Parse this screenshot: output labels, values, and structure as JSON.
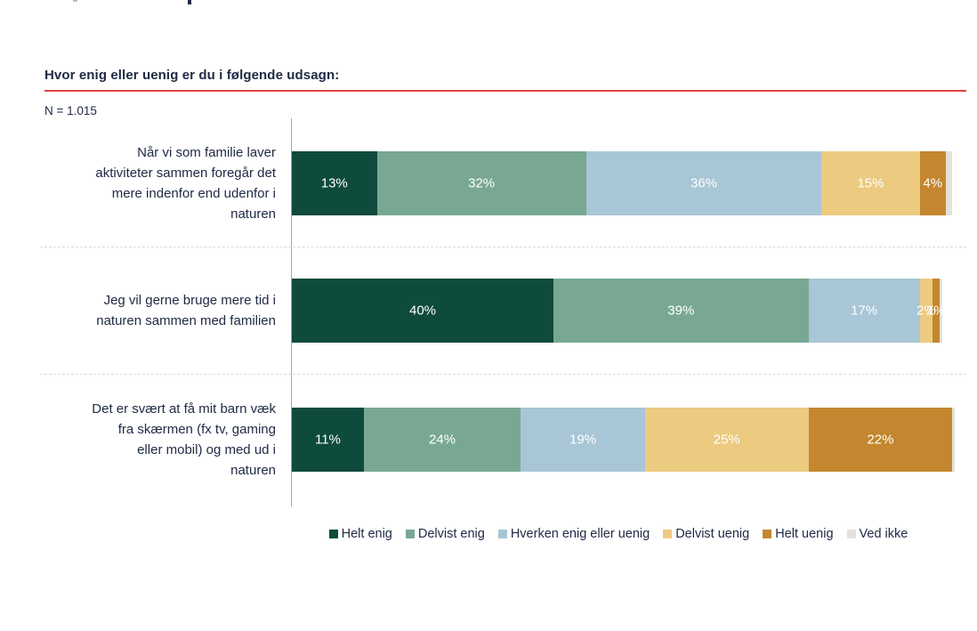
{
  "page": {
    "title": "Hvor enig eller uenig er du i følgende udsagn:",
    "sample_label": "N = 1.015"
  },
  "colors": {
    "accent_rule_red": "#E2453E",
    "text_navy": "#202B45",
    "axis_gray": "#A6A6A6",
    "separator_gray": "#D9D9D9",
    "background": "#FFFFFF",
    "bar_value_label": "#FFFFFF"
  },
  "chart_data": {
    "type": "bar",
    "orientation": "horizontal-stacked",
    "units": "percent",
    "xlim": [
      0,
      100
    ],
    "grid": false,
    "legend_position": "bottom-center",
    "title": "Hvor enig eller uenig er du i følgende udsagn:",
    "sample_size_note": "N = 1.015",
    "categories": [
      "Når vi som familie laver aktiviteter sammen foregår det mere indenfor end udenfor i naturen",
      "Jeg vil gerne bruge mere tid i naturen sammen med familien",
      "Det er svært at få mit barn væk fra skærmen (fx tv, gaming eller mobil) og med ud i naturen"
    ],
    "category_label_lines": [
      [
        "Når vi som familie laver",
        "aktiviteter sammen foregår det",
        "mere indenfor end udenfor i",
        "naturen"
      ],
      [
        "Jeg vil gerne bruge mere tid i",
        "naturen sammen med familien"
      ],
      [
        "Det er svært at få mit barn væk",
        "fra skærmen (fx tv, gaming",
        "eller mobil) og med ud i",
        "naturen"
      ]
    ],
    "series": [
      {
        "name": "Helt enig",
        "color": "#0E4B3C",
        "values": [
          13,
          40,
          11
        ]
      },
      {
        "name": "Delvist enig",
        "color": "#78A894",
        "values": [
          32,
          39,
          24
        ]
      },
      {
        "name": "Hverken enig eller uenig",
        "color": "#A8C6D5",
        "values": [
          36,
          17,
          19
        ]
      },
      {
        "name": "Delvist uenig",
        "color": "#ECCA80",
        "values": [
          15,
          2,
          25
        ]
      },
      {
        "name": "Helt uenig",
        "color": "#C4862E",
        "values": [
          4,
          1,
          22
        ]
      },
      {
        "name": "Ved ikke",
        "color": "#E3E1D9",
        "values": [
          1,
          0,
          0
        ],
        "labeled": false
      }
    ]
  }
}
